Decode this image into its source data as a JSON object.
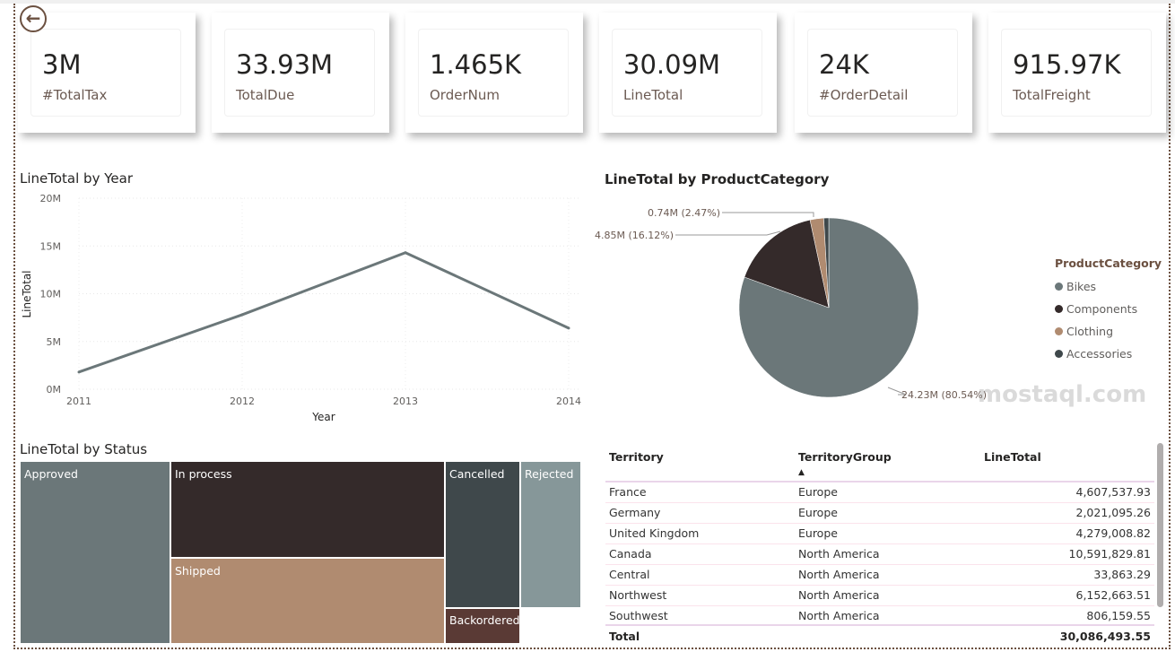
{
  "kpis": [
    {
      "value": "3M",
      "label": "#TotalTax"
    },
    {
      "value": "33.93M",
      "label": "TotalDue"
    },
    {
      "value": "1.465K",
      "label": "OrderNum"
    },
    {
      "value": "30.09M",
      "label": "LineTotal"
    },
    {
      "value": "24K",
      "label": "#OrderDetail"
    },
    {
      "value": "915.97K",
      "label": "TotalFreight"
    }
  ],
  "line_chart": {
    "title": "LineTotal by Year"
  },
  "pie_chart": {
    "title": "LineTotal by ProductCategory",
    "legend_title": "ProductCategory"
  },
  "treemap": {
    "title": "LineTotal by Status"
  },
  "chart_data": [
    {
      "type": "line",
      "title": "LineTotal by Year",
      "xlabel": "Year",
      "ylabel": "LineTotal",
      "x": [
        "2011",
        "2012",
        "2013",
        "2014"
      ],
      "values": [
        1.8,
        7.8,
        14.3,
        6.4
      ],
      "unit": "M",
      "ylim": [
        0,
        20
      ],
      "yticks": [
        "0M",
        "5M",
        "10M",
        "15M",
        "20M"
      ],
      "grid": true,
      "color": "#6b7779"
    },
    {
      "type": "pie",
      "title": "LineTotal by ProductCategory",
      "legend_position": "right",
      "categories": [
        "Bikes",
        "Components",
        "Clothing",
        "Accessories"
      ],
      "values": [
        24.23,
        4.85,
        0.74,
        0.27
      ],
      "labels": [
        "24.23M (80.54%)",
        "4.85M (16.12%)",
        "0.74M (2.47%)",
        ""
      ],
      "colors": [
        "#6b7779",
        "#342a2a",
        "#b08b70",
        "#3f484b"
      ]
    },
    {
      "type": "treemap",
      "title": "LineTotal by Status",
      "categories": [
        "Approved",
        "In process",
        "Shipped",
        "Cancelled",
        "Backordered",
        "Rejected"
      ],
      "colors": [
        "#6b7779",
        "#342a2a",
        "#b08b70",
        "#3f484b",
        "#5a3a35",
        "#869799"
      ]
    }
  ],
  "table": {
    "columns": [
      "Territory",
      "TerritoryGroup",
      "LineTotal"
    ],
    "rows": [
      [
        "France",
        "Europe",
        "4,607,537.93"
      ],
      [
        "Germany",
        "Europe",
        "2,021,095.26"
      ],
      [
        "United Kingdom",
        "Europe",
        "4,279,008.82"
      ],
      [
        "Canada",
        "North America",
        "10,591,829.81"
      ],
      [
        "Central",
        "North America",
        "33,863.29"
      ],
      [
        "Northwest",
        "North America",
        "6,152,663.51"
      ],
      [
        "Southwest",
        "North America",
        "806,159.55"
      ]
    ],
    "total_label": "Total",
    "total_value": "30,086,493.55"
  },
  "watermark": "mostaql.com"
}
